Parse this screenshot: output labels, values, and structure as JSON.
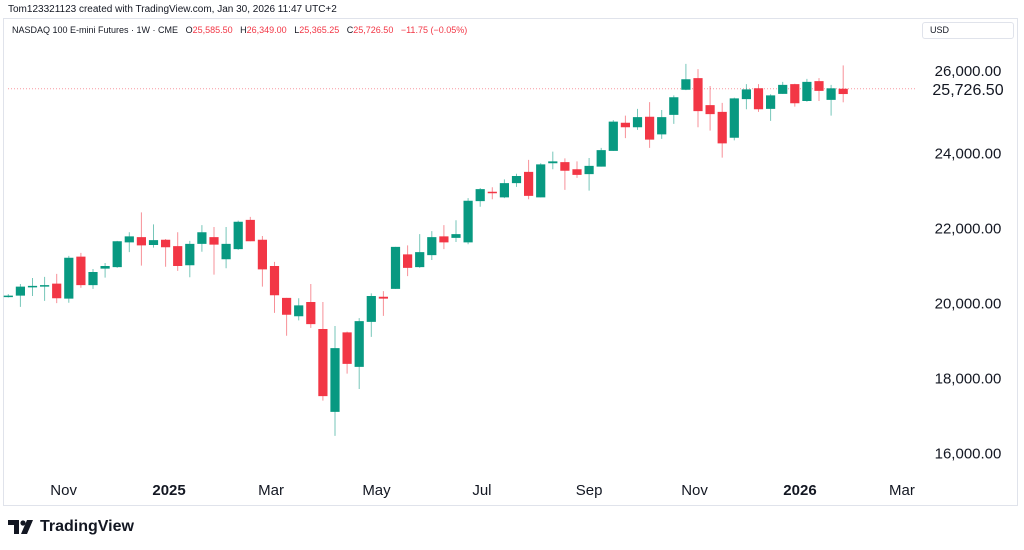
{
  "credit": "Tom123321123 created with TradingView.com, Jan 30, 2026 11:47 UTC+2",
  "legend": {
    "symbol": "NASDAQ 100 E-mini Futures · 1W · CME",
    "o_label": "O",
    "o": "25,585.50",
    "h_label": "H",
    "h": "26,349.00",
    "l_label": "L",
    "l": "25,365.25",
    "c_label": "C",
    "c": "25,726.50",
    "change": "−11.75 (−0.05%)"
  },
  "currency": "USD",
  "brand": "TradingView",
  "colors": {
    "up": "#089981",
    "down": "#f23645",
    "text": "#131722",
    "grid": "#e0e3eb"
  },
  "chart_data": {
    "type": "candlestick",
    "interval": "1W",
    "coloring": "close vs previous close",
    "ylim": [
      15700,
      26900
    ],
    "y_ticks": [
      "16,000.00",
      "18,000.00",
      "20,000.00",
      "22,000.00",
      "24,000.00",
      "26,000.00"
    ],
    "y_tick_values": [
      16000,
      18000,
      20000,
      22000,
      24000,
      26000
    ],
    "last_price": 25726.5,
    "last_price_label": "25,726.50",
    "x_ticks": [
      {
        "date": "2024-11-01",
        "label": "Nov",
        "bold": false
      },
      {
        "date": "2025-01-01",
        "label": "2025",
        "bold": true
      },
      {
        "date": "2025-03-01",
        "label": "Mar",
        "bold": false
      },
      {
        "date": "2025-05-01",
        "label": "May",
        "bold": false
      },
      {
        "date": "2025-07-01",
        "label": "Jul",
        "bold": false
      },
      {
        "date": "2025-09-01",
        "label": "Sep",
        "bold": false
      },
      {
        "date": "2025-11-01",
        "label": "Nov",
        "bold": false
      },
      {
        "date": "2026-01-01",
        "label": "2026",
        "bold": true
      },
      {
        "date": "2026-03-01",
        "label": "Mar",
        "bold": false
      }
    ],
    "columns": [
      "date",
      "open",
      "high",
      "low",
      "close"
    ],
    "candles": [
      [
        "2024-09-30",
        20190,
        20250,
        20160,
        20210
      ],
      [
        "2024-10-07",
        20210,
        20520,
        19910,
        20450
      ],
      [
        "2024-10-14",
        20430,
        20680,
        20200,
        20470
      ],
      [
        "2024-10-21",
        20470,
        20710,
        20070,
        20490
      ],
      [
        "2024-10-28",
        20530,
        20790,
        20010,
        20140
      ],
      [
        "2024-11-04",
        20130,
        21270,
        20020,
        21220
      ],
      [
        "2024-11-11",
        21250,
        21350,
        20420,
        20490
      ],
      [
        "2024-11-18",
        20490,
        20920,
        20390,
        20840
      ],
      [
        "2024-11-25",
        20930,
        21080,
        20690,
        21000
      ],
      [
        "2024-12-02",
        20970,
        21670,
        20950,
        21660
      ],
      [
        "2024-12-09",
        21630,
        21900,
        21370,
        21790
      ],
      [
        "2024-12-16",
        21770,
        22430,
        21010,
        21550
      ],
      [
        "2024-12-23",
        21560,
        22110,
        21490,
        21690
      ],
      [
        "2024-12-30",
        21700,
        21720,
        20980,
        21500
      ],
      [
        "2025-01-06",
        21530,
        21900,
        20870,
        21000
      ],
      [
        "2025-01-13",
        21020,
        21670,
        20700,
        21590
      ],
      [
        "2025-01-20",
        21590,
        22090,
        21380,
        21900
      ],
      [
        "2025-01-27",
        21770,
        22040,
        20770,
        21570
      ],
      [
        "2025-02-03",
        21180,
        22040,
        20940,
        21590
      ],
      [
        "2025-02-10",
        21450,
        22210,
        21430,
        22180
      ],
      [
        "2025-02-17",
        22230,
        22310,
        21660,
        21660
      ],
      [
        "2025-02-24",
        21700,
        21800,
        20450,
        20910
      ],
      [
        "2025-03-03",
        21000,
        21110,
        19750,
        20220
      ],
      [
        "2025-03-10",
        20150,
        20150,
        19140,
        19700
      ],
      [
        "2025-03-17",
        19660,
        20140,
        19550,
        19950
      ],
      [
        "2025-03-24",
        20040,
        20520,
        19350,
        19450
      ],
      [
        "2025-03-31",
        19320,
        20040,
        17410,
        17530
      ],
      [
        "2025-04-07",
        17110,
        19400,
        16470,
        18810
      ],
      [
        "2025-04-14",
        19230,
        19250,
        18130,
        18390
      ],
      [
        "2025-04-21",
        18310,
        19610,
        17720,
        19530
      ],
      [
        "2025-04-28",
        19510,
        20270,
        19110,
        20200
      ],
      [
        "2025-05-05",
        20180,
        20330,
        19670,
        20130
      ],
      [
        "2025-05-12",
        20390,
        21510,
        20390,
        21510
      ],
      [
        "2025-05-19",
        21310,
        21550,
        20730,
        20950
      ],
      [
        "2025-05-26",
        20970,
        21850,
        20950,
        21370
      ],
      [
        "2025-06-02",
        21290,
        21930,
        21160,
        21770
      ],
      [
        "2025-06-09",
        21790,
        22090,
        21450,
        21630
      ],
      [
        "2025-06-16",
        21750,
        22220,
        21640,
        21850
      ],
      [
        "2025-06-23",
        21630,
        22810,
        21580,
        22740
      ],
      [
        "2025-06-30",
        22730,
        23080,
        22580,
        23050
      ],
      [
        "2025-07-07",
        22980,
        23100,
        22780,
        22970
      ],
      [
        "2025-07-14",
        22830,
        23310,
        22810,
        23210
      ],
      [
        "2025-07-21",
        23210,
        23460,
        23110,
        23400
      ],
      [
        "2025-07-28",
        23510,
        23830,
        22780,
        22870
      ],
      [
        "2025-08-04",
        22830,
        23740,
        22830,
        23710
      ],
      [
        "2025-08-11",
        23740,
        24050,
        23580,
        23790
      ],
      [
        "2025-08-18",
        23770,
        23870,
        23030,
        23540
      ],
      [
        "2025-08-25",
        23580,
        23790,
        23350,
        23430
      ],
      [
        "2025-09-01",
        23450,
        23880,
        23010,
        23670
      ],
      [
        "2025-09-08",
        23650,
        24150,
        23650,
        24090
      ],
      [
        "2025-09-15",
        24070,
        24890,
        24070,
        24850
      ],
      [
        "2025-09-22",
        24820,
        25010,
        24410,
        24700
      ],
      [
        "2025-09-29",
        24700,
        25190,
        24630,
        24970
      ],
      [
        "2025-10-06",
        24980,
        25370,
        24150,
        24370
      ],
      [
        "2025-10-13",
        24510,
        25160,
        24390,
        24970
      ],
      [
        "2025-10-20",
        25030,
        25550,
        24790,
        25500
      ],
      [
        "2025-10-27",
        25700,
        26390,
        25690,
        25980
      ],
      [
        "2025-11-03",
        26010,
        26250,
        24700,
        25130
      ],
      [
        "2025-11-10",
        25290,
        25800,
        24610,
        25050
      ],
      [
        "2025-11-17",
        25110,
        25350,
        23890,
        24270
      ],
      [
        "2025-11-24",
        24420,
        25490,
        24350,
        25470
      ],
      [
        "2025-12-01",
        25450,
        25850,
        25180,
        25710
      ],
      [
        "2025-12-08",
        25740,
        25850,
        25110,
        25180
      ],
      [
        "2025-12-15",
        25190,
        25580,
        24870,
        25550
      ],
      [
        "2025-12-22",
        25590,
        25910,
        25590,
        25830
      ],
      [
        "2025-12-29",
        25850,
        25860,
        25250,
        25340
      ],
      [
        "2026-01-05",
        25400,
        25990,
        25380,
        25910
      ],
      [
        "2026-01-12",
        25930,
        26010,
        25400,
        25670
      ],
      [
        "2026-01-19",
        25430,
        25830,
        25010,
        25738.25
      ],
      [
        "2026-01-26",
        25585.5,
        26349.0,
        25365.25,
        25726.5
      ]
    ]
  }
}
